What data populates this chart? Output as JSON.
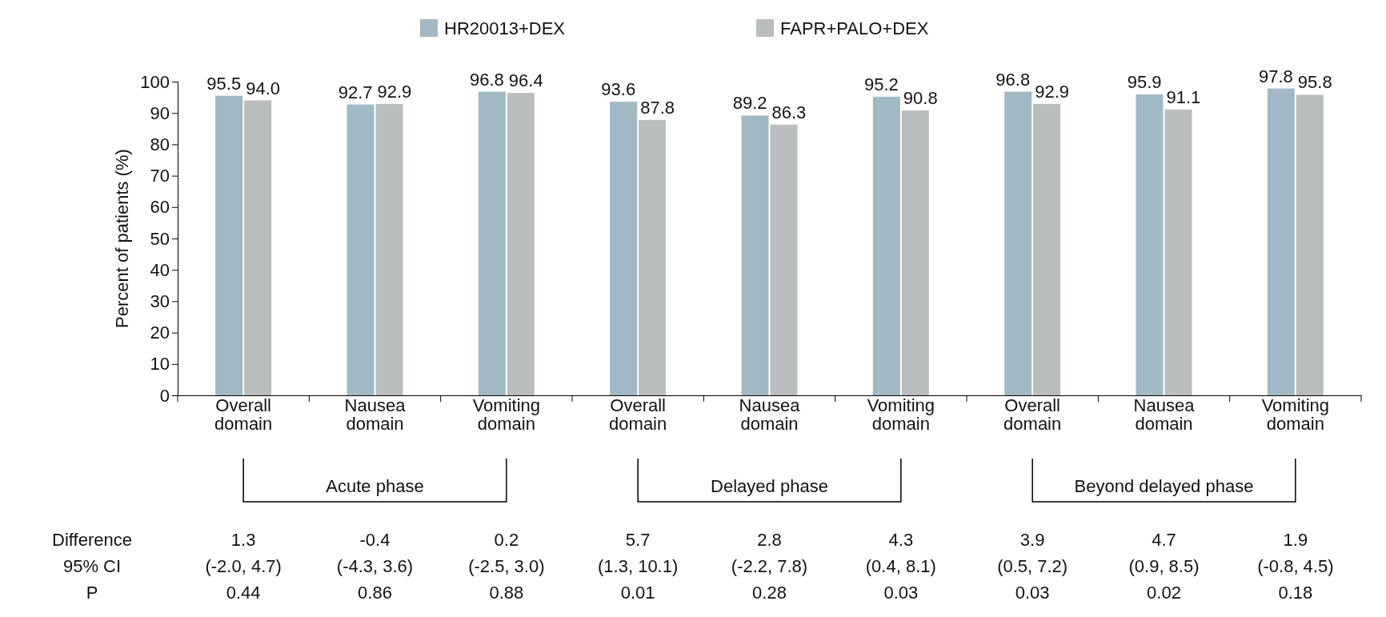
{
  "chart_data": {
    "type": "bar",
    "ylabel": "Percent of patients (%)",
    "categories": [
      "Overall domain",
      "Nausea domain",
      "Vomiting domain",
      "Overall domain",
      "Nausea domain",
      "Vomiting domain",
      "Overall domain",
      "Nausea domain",
      "Vomiting domain"
    ],
    "series": [
      {
        "name": "HR20013+DEX",
        "color": "#a0b9c4",
        "values": [
          95.5,
          92.7,
          96.8,
          93.6,
          89.2,
          95.2,
          96.8,
          95.9,
          97.8
        ],
        "value_labels": [
          "95.5",
          "92.7",
          "96.8",
          "93.6",
          "89.2",
          "95.2",
          "96.8",
          "95.9",
          "97.8"
        ]
      },
      {
        "name": "FAPR+PALO+DEX",
        "color": "#b9bdbd",
        "values": [
          94.0,
          92.9,
          96.4,
          87.8,
          86.3,
          90.8,
          92.9,
          91.1,
          95.8
        ],
        "value_labels": [
          "94.0",
          "92.9",
          "96.4",
          "87.8",
          "86.3",
          "90.8",
          "92.9",
          "91.1",
          "95.8"
        ]
      }
    ],
    "ylim": [
      0,
      100
    ],
    "yticks": [
      0,
      10,
      20,
      30,
      40,
      50,
      60,
      70,
      80,
      90,
      100
    ],
    "grid": false,
    "legend": "top",
    "annotations": [
      "Acute phase",
      "Delayed phase",
      "Beyond delayed phase",
      "Difference",
      "95% CI",
      "P",
      "1.3",
      "-0.4",
      "0.2",
      "5.7",
      "2.8",
      "4.3",
      "3.9",
      "4.7",
      "1.9",
      "(-2.0, 4.7)",
      "(-4.3, 3.6)",
      "(-2.5, 3.0)",
      "(1.3, 10.1)",
      "(-2.2, 7.8)",
      "(0.4, 8.1)",
      "(0.5, 7.2)",
      "(0.9, 8.5)",
      "(-0.8, 4.5)",
      "0.44",
      "0.86",
      "0.88",
      "0.01",
      "0.28",
      "0.03",
      "0.03",
      "0.02",
      "0.18"
    ]
  }
}
